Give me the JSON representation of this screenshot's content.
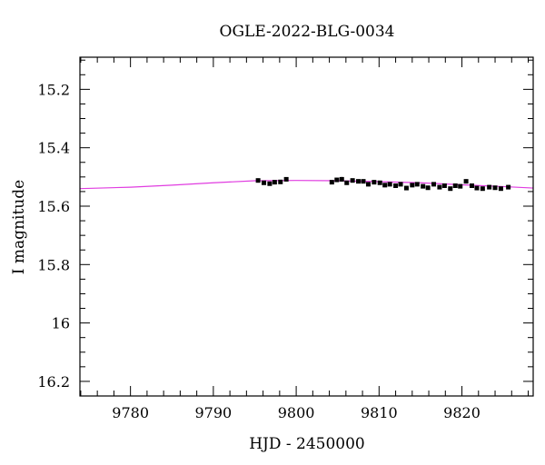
{
  "chart_data": {
    "type": "scatter",
    "title": "OGLE-2022-BLG-0034",
    "xlabel": "HJD - 2450000",
    "ylabel": "I magnitude",
    "xlim": [
      9773.9,
      9828.6
    ],
    "ylim": [
      16.25,
      15.09
    ],
    "y_inverted": true,
    "x_major_ticks": [
      9780,
      9790,
      9800,
      9810,
      9820
    ],
    "x_tick_labels": [
      "9780",
      "9790",
      "9800",
      "9810",
      "9820"
    ],
    "x_minor_step": 2,
    "y_major_ticks": [
      15.2,
      15.4,
      15.6,
      15.8,
      16,
      16.2
    ],
    "y_tick_labels": [
      "15.2",
      "15.4",
      "15.6",
      "15.8",
      "16",
      "16.2"
    ],
    "y_minor_step": 0.05,
    "grid": false,
    "model_curve": {
      "color": "#e03ce0",
      "x": [
        9773.9,
        9780,
        9785,
        9790,
        9795,
        9800,
        9805,
        9810,
        9815,
        9820,
        9825,
        9828.6
      ],
      "y": [
        15.54,
        15.535,
        15.528,
        15.52,
        15.513,
        15.512,
        15.513,
        15.516,
        15.52,
        15.527,
        15.533,
        15.538
      ]
    },
    "series": [
      {
        "x": [
          9795.4,
          9796.1,
          9796.8,
          9797.4,
          9798.1,
          9798.8,
          9804.3,
          9804.9,
          9805.5,
          9806.1,
          9806.8,
          9807.5,
          9808.1,
          9808.7,
          9809.4,
          9810.1,
          9810.7,
          9811.3,
          9812.0,
          9812.6,
          9813.3,
          9814.0,
          9814.6,
          9815.3,
          9815.9,
          9816.6,
          9817.3,
          9817.9,
          9818.6,
          9819.2,
          9819.8,
          9820.5,
          9821.2,
          9821.8,
          9822.5,
          9823.3,
          9824.0,
          9824.7,
          9825.6
        ],
        "y": [
          15.512,
          15.52,
          15.523,
          15.518,
          15.517,
          15.508,
          15.518,
          15.51,
          15.508,
          15.52,
          15.512,
          15.515,
          15.515,
          15.525,
          15.518,
          15.52,
          15.528,
          15.525,
          15.53,
          15.525,
          15.538,
          15.528,
          15.525,
          15.532,
          15.537,
          15.525,
          15.535,
          15.53,
          15.54,
          15.53,
          15.532,
          15.515,
          15.53,
          15.538,
          15.54,
          15.535,
          15.537,
          15.54,
          15.535
        ],
        "err": [
          0.007,
          0.007,
          0.007,
          0.007,
          0.007,
          0.007,
          0.007,
          0.007,
          0.008,
          0.007,
          0.007,
          0.007,
          0.007,
          0.007,
          0.007,
          0.007,
          0.007,
          0.007,
          0.007,
          0.007,
          0.007,
          0.007,
          0.007,
          0.007,
          0.007,
          0.007,
          0.007,
          0.007,
          0.007,
          0.007,
          0.007,
          0.007,
          0.007,
          0.007,
          0.007,
          0.007,
          0.007,
          0.007,
          0.007
        ]
      }
    ]
  }
}
